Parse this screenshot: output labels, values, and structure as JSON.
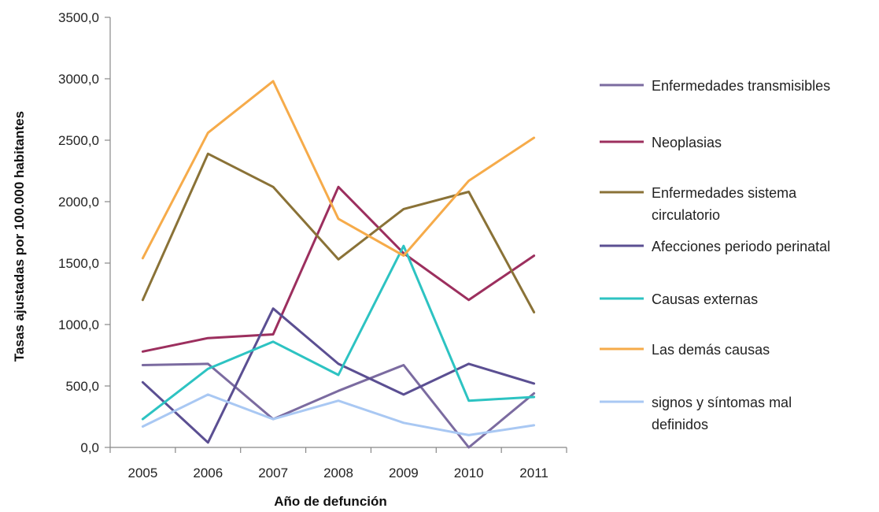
{
  "chart_data": {
    "type": "line",
    "title": "",
    "xlabel": "Año de defunción",
    "ylabel": "Tasas ajustadas por 100.000 habitantes",
    "x": [
      "2005",
      "2006",
      "2007",
      "2008",
      "2009",
      "2010",
      "2011"
    ],
    "ylim": [
      0,
      3500
    ],
    "yticks": [
      "0,0",
      "500,0",
      "1000,0",
      "1500,0",
      "2000,0",
      "2500,0",
      "3000,0",
      "3500,0"
    ],
    "grid": false,
    "legend_position": "right",
    "series": [
      {
        "name": "Enfermedades transmisibles",
        "color": "#7b6ba0",
        "values": [
          670,
          680,
          230,
          460,
          670,
          0,
          440
        ]
      },
      {
        "name": "Neoplasias",
        "color": "#9c2f5e",
        "values": [
          780,
          890,
          920,
          2120,
          1580,
          1200,
          1560
        ]
      },
      {
        "name": "Enfermedades sistema circulatorio",
        "color": "#8a7237",
        "values": [
          1200,
          2390,
          2120,
          1530,
          1940,
          2080,
          1100
        ]
      },
      {
        "name": "Afecciones periodo perinatal",
        "color": "#5b4f92",
        "values": [
          530,
          40,
          1130,
          680,
          430,
          680,
          520
        ]
      },
      {
        "name": "Causas externas",
        "color": "#2dc3c2",
        "values": [
          230,
          640,
          860,
          590,
          1640,
          380,
          410
        ]
      },
      {
        "name": "Las demás causas",
        "color": "#f6ab4a",
        "values": [
          1540,
          2560,
          2980,
          1860,
          1560,
          2170,
          2520
        ]
      },
      {
        "name": "signos y síntomas mal definidos",
        "color": "#a9c8f3",
        "values": [
          170,
          430,
          230,
          380,
          200,
          100,
          180
        ]
      }
    ],
    "legend_lines": [
      [
        "Enfermedades transmisibles"
      ],
      [
        "Neoplasias"
      ],
      [
        "Enfermedades sistema",
        "circulatorio"
      ],
      [
        "Afecciones periodo perinatal"
      ],
      [
        "Causas externas"
      ],
      [
        "Las demás causas"
      ],
      [
        "signos y síntomas mal",
        "definidos"
      ]
    ]
  }
}
